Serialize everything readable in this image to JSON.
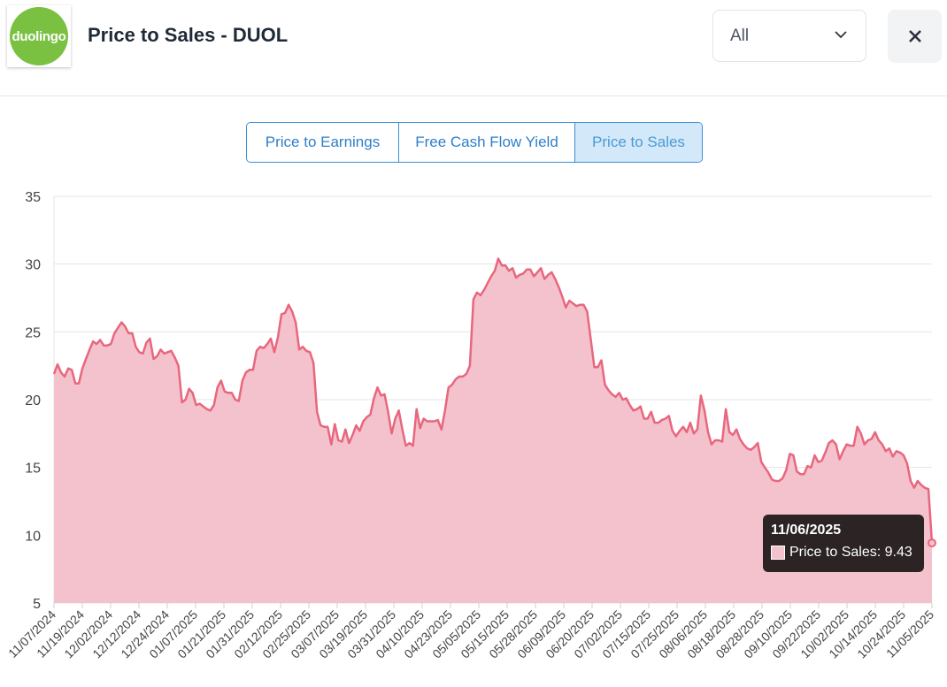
{
  "header": {
    "logo_text": "duolingo",
    "title": "Price to Sales - DUOL",
    "range_value": "All"
  },
  "tabs": [
    {
      "label": "Price to Earnings",
      "active": false
    },
    {
      "label": "Free Cash Flow Yield",
      "active": false
    },
    {
      "label": "Price to Sales",
      "active": true
    }
  ],
  "colors": {
    "line": "#e8677e",
    "fill": "#f4c2cc",
    "grid": "#e4e4e4"
  },
  "tooltip": {
    "date": "11/06/2025",
    "series": "Price to Sales",
    "value": "9.43",
    "label_text": "Price to Sales: 9.43"
  },
  "chart_data": {
    "type": "area",
    "title": "Price to Sales - DUOL",
    "ylim": [
      5,
      35
    ],
    "yticks": [
      5,
      10,
      15,
      20,
      25,
      30,
      35
    ],
    "grid": true,
    "xtick_labels": [
      "11/07/2024",
      "11/19/2024",
      "12/02/2024",
      "12/12/2024",
      "12/24/2024",
      "01/07/2025",
      "01/21/2025",
      "01/31/2025",
      "02/12/2025",
      "02/25/2025",
      "03/07/2025",
      "03/19/2025",
      "03/31/2025",
      "04/10/2025",
      "04/23/2025",
      "05/05/2025",
      "05/15/2025",
      "05/28/2025",
      "06/09/2025",
      "06/20/2025",
      "07/02/2025",
      "07/15/2025",
      "07/25/2025",
      "08/06/2025",
      "08/18/2025",
      "08/28/2025",
      "09/10/2025",
      "09/22/2025",
      "10/02/2025",
      "10/14/2025",
      "10/24/2025",
      "11/05/2025"
    ],
    "series": [
      {
        "name": "Price to Sales",
        "values": [
          21.9,
          22.6,
          22.0,
          21.7,
          22.3,
          22.2,
          21.2,
          21.2,
          22.3,
          23.0,
          23.7,
          24.3,
          24.1,
          24.4,
          24.0,
          24.0,
          24.1,
          24.9,
          25.3,
          25.7,
          25.4,
          24.9,
          24.9,
          23.9,
          23.5,
          23.4,
          24.2,
          24.5,
          23.0,
          23.2,
          23.7,
          23.4,
          23.5,
          23.6,
          23.1,
          22.5,
          19.8,
          20.0,
          20.8,
          20.5,
          19.6,
          19.7,
          19.5,
          19.3,
          19.2,
          19.6,
          20.9,
          21.4,
          20.6,
          20.5,
          20.5,
          20.0,
          19.9,
          21.4,
          22.0,
          22.2,
          22.2,
          23.6,
          23.9,
          23.8,
          24.1,
          24.5,
          23.5,
          24.6,
          26.3,
          26.4,
          27.0,
          26.5,
          25.7,
          23.7,
          23.9,
          23.6,
          23.5,
          22.7,
          19.1,
          18.1,
          18.0,
          18.0,
          16.7,
          18.2,
          17.0,
          16.9,
          17.8,
          16.8,
          17.4,
          18.1,
          17.7,
          18.4,
          18.7,
          18.9,
          20.1,
          20.9,
          20.3,
          20.4,
          19.1,
          17.5,
          18.6,
          19.2,
          17.8,
          16.6,
          16.8,
          16.6,
          19.3,
          17.9,
          18.6,
          18.4,
          18.4,
          18.4,
          18.5,
          17.8,
          19.2,
          20.9,
          21.1,
          21.5,
          21.7,
          21.7,
          21.9,
          22.5,
          27.4,
          27.9,
          27.7,
          28.1,
          28.6,
          29.1,
          29.5,
          30.4,
          29.9,
          29.9,
          29.5,
          29.7,
          29.0,
          29.2,
          29.3,
          29.6,
          29.6,
          29.1,
          29.4,
          29.7,
          28.9,
          29.2,
          29.4,
          28.9,
          28.3,
          27.6,
          26.8,
          27.3,
          27.1,
          26.9,
          27.0,
          27.0,
          26.5,
          24.5,
          22.4,
          22.4,
          22.9,
          21.1,
          20.7,
          20.4,
          20.2,
          20.5,
          20.0,
          20.1,
          19.6,
          19.2,
          19.3,
          19.5,
          18.6,
          18.6,
          19.1,
          18.3,
          18.3,
          18.5,
          18.6,
          18.8,
          17.7,
          17.3,
          17.7,
          18.0,
          17.6,
          18.3,
          17.5,
          17.8,
          20.3,
          19.2,
          17.6,
          16.7,
          17.0,
          17.0,
          16.9,
          19.3,
          17.6,
          17.4,
          17.8,
          17.1,
          16.7,
          16.4,
          16.3,
          16.5,
          16.8,
          15.4,
          15.0,
          14.6,
          14.1,
          14.0,
          14.0,
          14.2,
          14.8,
          16.0,
          15.9,
          14.7,
          14.5,
          14.5,
          15.1,
          15.0,
          15.9,
          15.4,
          15.5,
          16.1,
          16.8,
          17.0,
          16.7,
          15.6,
          16.2,
          16.7,
          16.6,
          16.6,
          18.0,
          17.5,
          16.7,
          17.0,
          17.1,
          17.6,
          17.0,
          16.7,
          16.2,
          16.4,
          15.8,
          16.2,
          16.1,
          15.9,
          15.3,
          14.0,
          13.5,
          14.0,
          13.7,
          13.5,
          13.4,
          9.43
        ]
      }
    ]
  }
}
